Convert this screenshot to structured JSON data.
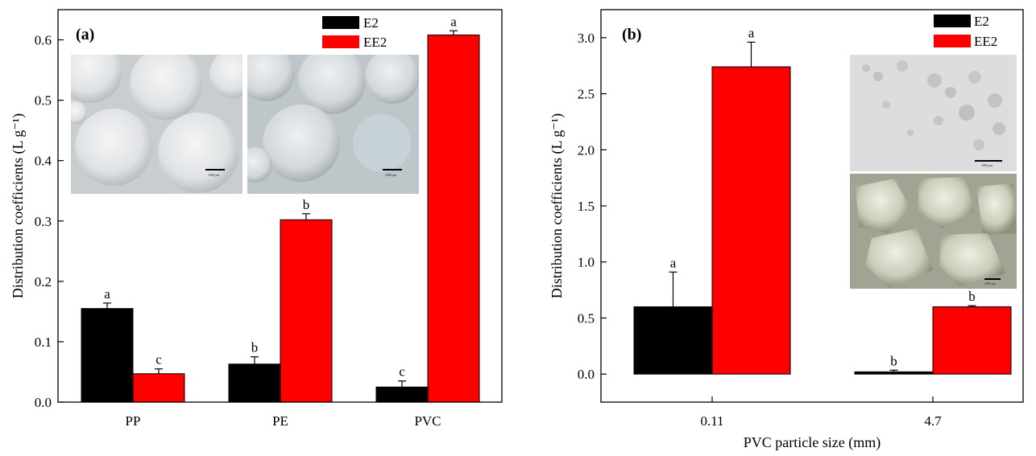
{
  "figure": {
    "colors": {
      "E2": "#000000",
      "EE2": "#ff0000"
    }
  },
  "chart_data": [
    {
      "type": "bar",
      "panel_label": "(a)",
      "categories": [
        "PP",
        "PE",
        "PVC"
      ],
      "ylabel": "Distribution coefficients  (L g⁻¹)",
      "xlabel": "",
      "ylim": [
        0,
        0.65
      ],
      "yticks": [
        "0.0",
        "0.1",
        "0.2",
        "0.3",
        "0.4",
        "0.5",
        "0.6"
      ],
      "legend_position": "top-right",
      "series": [
        {
          "name": "E2",
          "color": "#000000",
          "values": [
            0.155,
            0.063,
            0.025
          ],
          "errors": [
            0.009,
            0.012,
            0.01
          ],
          "letters": [
            "a",
            "b",
            "c"
          ]
        },
        {
          "name": "EE2",
          "color": "#ff0000",
          "values": [
            0.047,
            0.302,
            0.608
          ],
          "errors": [
            0.008,
            0.01,
            0.007
          ],
          "letters": [
            "c",
            "b",
            "a"
          ]
        }
      ],
      "insets": [
        {
          "image": "micrograph of PP beads",
          "scale_text": "1000 μm"
        },
        {
          "image": "micrograph of PE beads",
          "scale_text": "1000 μm"
        }
      ]
    },
    {
      "type": "bar",
      "panel_label": "(b)",
      "categories": [
        "0.11",
        "4.7"
      ],
      "ylabel": "Distribution coefficients  (L g⁻¹)",
      "xlabel": "PVC particle size (mm)",
      "ylim": [
        -0.25,
        3.25
      ],
      "yticks": [
        "0.0",
        "0.5",
        "1.0",
        "1.5",
        "2.0",
        "2.5",
        "3.0"
      ],
      "legend_position": "top-right",
      "series": [
        {
          "name": "E2",
          "color": "#000000",
          "values": [
            0.6,
            0.02
          ],
          "errors": [
            0.31,
            0.015
          ],
          "letters": [
            "a",
            "b"
          ]
        },
        {
          "name": "EE2",
          "color": "#ff0000",
          "values": [
            2.74,
            0.6
          ],
          "errors": [
            0.22,
            0.01
          ],
          "letters": [
            "a",
            "b"
          ]
        }
      ],
      "insets": [
        {
          "image": "micrograph of fine PVC powder",
          "scale_text": "1000 μm"
        },
        {
          "image": "micrograph of coarse PVC granules",
          "scale_text": "1000 μm"
        }
      ]
    }
  ]
}
